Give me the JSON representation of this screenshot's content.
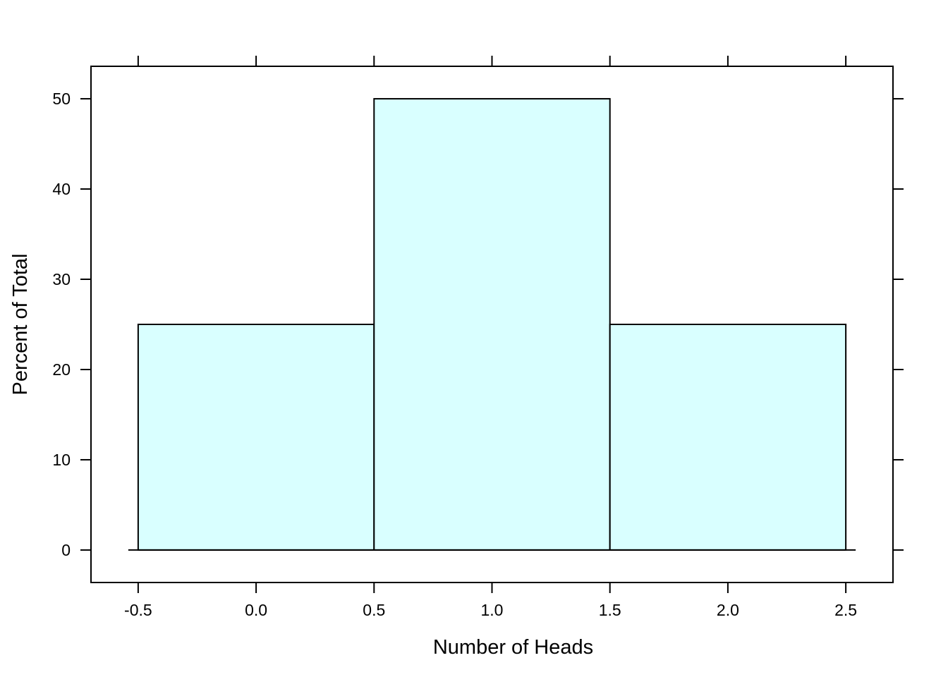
{
  "chart_data": {
    "type": "bar",
    "title": "",
    "xlabel": "Number of Heads",
    "ylabel": "Percent of Total",
    "xlim": [
      -0.7,
      2.7
    ],
    "ylim": [
      -3.6,
      53.6
    ],
    "bins": [
      {
        "x0": -0.5,
        "x1": 0.5,
        "value": 25
      },
      {
        "x0": 0.5,
        "x1": 1.5,
        "value": 50
      },
      {
        "x0": 1.5,
        "x1": 2.5,
        "value": 25
      }
    ],
    "x_ticks": [
      {
        "value": -0.5,
        "label": "-0.5"
      },
      {
        "value": 0.0,
        "label": "0.0"
      },
      {
        "value": 0.5,
        "label": "0.5"
      },
      {
        "value": 1.0,
        "label": "1.0"
      },
      {
        "value": 1.5,
        "label": "1.5"
      },
      {
        "value": 2.0,
        "label": "2.0"
      },
      {
        "value": 2.5,
        "label": "2.5"
      }
    ],
    "y_ticks": [
      {
        "value": 0,
        "label": "0"
      },
      {
        "value": 10,
        "label": "10"
      },
      {
        "value": 20,
        "label": "20"
      },
      {
        "value": 30,
        "label": "30"
      },
      {
        "value": 40,
        "label": "40"
      },
      {
        "value": 50,
        "label": "50"
      }
    ],
    "grid": false,
    "legend": "none",
    "colors": {
      "bar_fill": "#d9ffff",
      "stroke": "#000000"
    }
  }
}
